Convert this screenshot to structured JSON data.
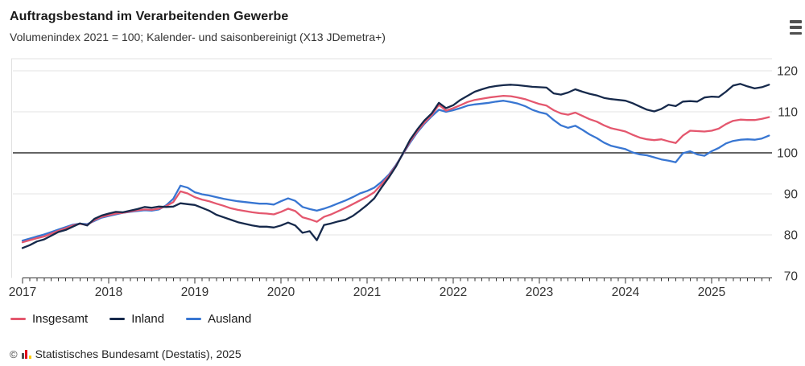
{
  "header": {
    "title": "Auftragsbestand im Verarbeitenden Gewerbe",
    "subtitle": "Volumenindex 2021 = 100; Kalender- und saisonbereinigt (X13 JDemetra+)"
  },
  "menu": {
    "icon": "hamburger-menu"
  },
  "chart_data": {
    "type": "line",
    "title": "Auftragsbestand im Verarbeitenden Gewerbe",
    "subtitle": "Volumenindex 2021 = 100; Kalender- und saisonbereinigt (X13 JDemetra+)",
    "x_start": "2017-01",
    "x_end": "2025-09",
    "x_frequency": "monthly",
    "x_tick_labels": [
      "2017",
      "2018",
      "2019",
      "2020",
      "2021",
      "2022",
      "2023",
      "2024",
      "2025"
    ],
    "y_ticks": [
      70,
      80,
      90,
      100,
      110,
      120
    ],
    "ylim": [
      70,
      123
    ],
    "baseline": 100,
    "grid": "horizontal",
    "legend_position": "bottom",
    "axis_color": "#333333",
    "grid_color": "#e3e3e3",
    "baseline_color": "#646464",
    "series": [
      {
        "name": "Insgesamt",
        "color": "#e4576e",
        "values": [
          78.2,
          78.7,
          79.2,
          79.6,
          80.3,
          81.0,
          81.6,
          82.3,
          82.7,
          82.4,
          83.6,
          84.4,
          84.8,
          85.2,
          85.4,
          85.7,
          86.0,
          86.2,
          86.1,
          86.4,
          87.0,
          88.0,
          90.6,
          90.1,
          89.2,
          88.6,
          88.2,
          87.6,
          87.1,
          86.5,
          86.1,
          85.8,
          85.5,
          85.3,
          85.2,
          85.0,
          85.6,
          86.4,
          85.8,
          84.3,
          83.8,
          83.2,
          84.4,
          85.0,
          85.8,
          86.6,
          87.5,
          88.4,
          89.3,
          90.4,
          92.3,
          94.3,
          96.8,
          99.8,
          102.8,
          105.3,
          107.4,
          109.2,
          111.7,
          110.3,
          110.9,
          111.6,
          112.4,
          112.9,
          113.2,
          113.5,
          113.7,
          113.9,
          113.8,
          113.5,
          113.1,
          112.5,
          111.9,
          111.5,
          110.4,
          109.6,
          109.3,
          109.8,
          109.0,
          108.2,
          107.6,
          106.7,
          106.0,
          105.6,
          105.2,
          104.4,
          103.7,
          103.3,
          103.1,
          103.3,
          102.8,
          102.4,
          104.2,
          105.4,
          105.3,
          105.2,
          105.4,
          105.9,
          107.0,
          107.8,
          108.1,
          108.0,
          108.0,
          108.3,
          108.7
        ]
      },
      {
        "name": "Inland",
        "color": "#16294b",
        "values": [
          76.8,
          77.5,
          78.4,
          78.9,
          79.8,
          80.7,
          81.2,
          82.0,
          82.8,
          82.3,
          83.9,
          84.7,
          85.2,
          85.6,
          85.5,
          85.9,
          86.3,
          86.8,
          86.6,
          86.9,
          86.8,
          86.9,
          87.7,
          87.5,
          87.3,
          86.6,
          85.9,
          84.9,
          84.3,
          83.7,
          83.1,
          82.7,
          82.3,
          82.0,
          82.0,
          81.8,
          82.3,
          83.0,
          82.3,
          80.5,
          80.9,
          78.7,
          82.4,
          82.8,
          83.3,
          83.7,
          84.6,
          85.9,
          87.3,
          88.9,
          91.5,
          93.9,
          96.6,
          99.9,
          103.2,
          105.7,
          107.9,
          109.6,
          112.2,
          110.9,
          111.6,
          112.9,
          113.9,
          114.9,
          115.5,
          116.0,
          116.3,
          116.5,
          116.6,
          116.5,
          116.3,
          116.1,
          116.0,
          115.9,
          114.5,
          114.2,
          114.7,
          115.5,
          114.9,
          114.4,
          114.0,
          113.4,
          113.1,
          112.9,
          112.7,
          112.1,
          111.3,
          110.5,
          110.1,
          110.7,
          111.7,
          111.4,
          112.5,
          112.6,
          112.5,
          113.5,
          113.7,
          113.6,
          114.9,
          116.4,
          116.8,
          116.2,
          115.7,
          116.0,
          116.6
        ]
      },
      {
        "name": "Ausland",
        "color": "#3876d2",
        "values": [
          78.6,
          79.1,
          79.6,
          80.1,
          80.7,
          81.3,
          81.9,
          82.5,
          82.7,
          82.6,
          83.4,
          84.2,
          84.6,
          85.0,
          85.4,
          85.6,
          85.8,
          86.0,
          85.9,
          86.2,
          87.2,
          88.8,
          92.0,
          91.5,
          90.4,
          89.9,
          89.6,
          89.2,
          88.8,
          88.5,
          88.2,
          88.0,
          87.8,
          87.6,
          87.6,
          87.4,
          88.2,
          88.9,
          88.3,
          86.8,
          86.3,
          85.9,
          86.4,
          87.0,
          87.7,
          88.4,
          89.2,
          90.1,
          90.7,
          91.5,
          92.9,
          94.6,
          97.0,
          99.7,
          102.5,
          105.0,
          107.1,
          108.9,
          110.5,
          110.0,
          110.4,
          110.9,
          111.5,
          111.8,
          112.0,
          112.2,
          112.5,
          112.7,
          112.4,
          112.0,
          111.4,
          110.5,
          109.9,
          109.5,
          108.0,
          106.7,
          106.1,
          106.6,
          105.6,
          104.5,
          103.6,
          102.5,
          101.7,
          101.3,
          100.9,
          100.1,
          99.6,
          99.4,
          98.9,
          98.4,
          98.1,
          97.7,
          99.9,
          100.4,
          99.6,
          99.3,
          100.4,
          101.2,
          102.3,
          102.9,
          103.2,
          103.3,
          103.2,
          103.5,
          104.2
        ]
      }
    ]
  },
  "footer": {
    "copyright": "©",
    "source": "Statistisches Bundesamt (Destatis), 2025"
  }
}
